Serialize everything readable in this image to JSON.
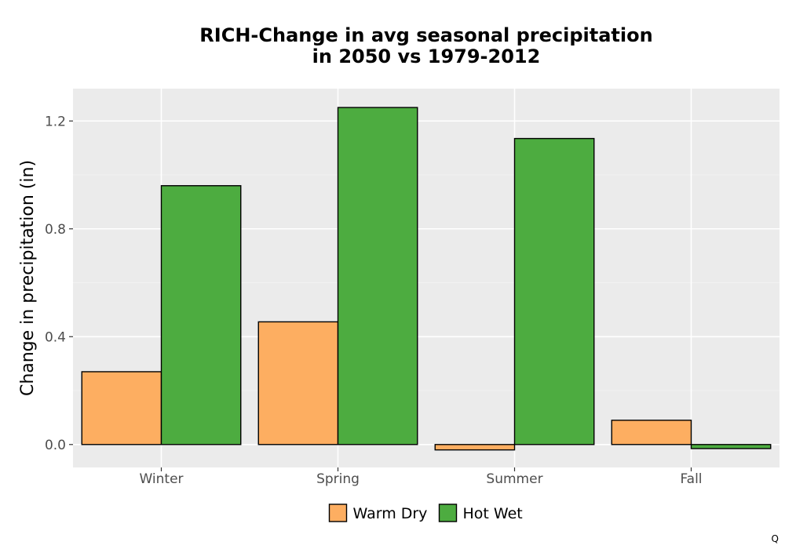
{
  "chart_data": {
    "type": "bar",
    "title_line1": "RICH-Change in avg seasonal precipitation",
    "title_line2": "in 2050 vs 1979-2012",
    "xlabel": "",
    "ylabel": "Change in precipitation (in)",
    "categories": [
      "Winter",
      "Spring",
      "Summer",
      "Fall"
    ],
    "series": [
      {
        "name": "Warm Dry",
        "color": "#fdae61",
        "values": [
          0.27,
          0.455,
          -0.02,
          0.09
        ]
      },
      {
        "name": "Hot Wet",
        "color": "#4dac40",
        "values": [
          0.96,
          1.25,
          1.135,
          -0.015
        ]
      }
    ],
    "ylim": [
      -0.085,
      1.32
    ],
    "yticks": [
      0.0,
      0.4,
      0.8,
      1.2
    ],
    "ytick_labels": [
      "0.0",
      "0.4",
      "0.8",
      "1.2"
    ],
    "grid": true,
    "legend_position": "bottom"
  },
  "corner_mark": "Q"
}
